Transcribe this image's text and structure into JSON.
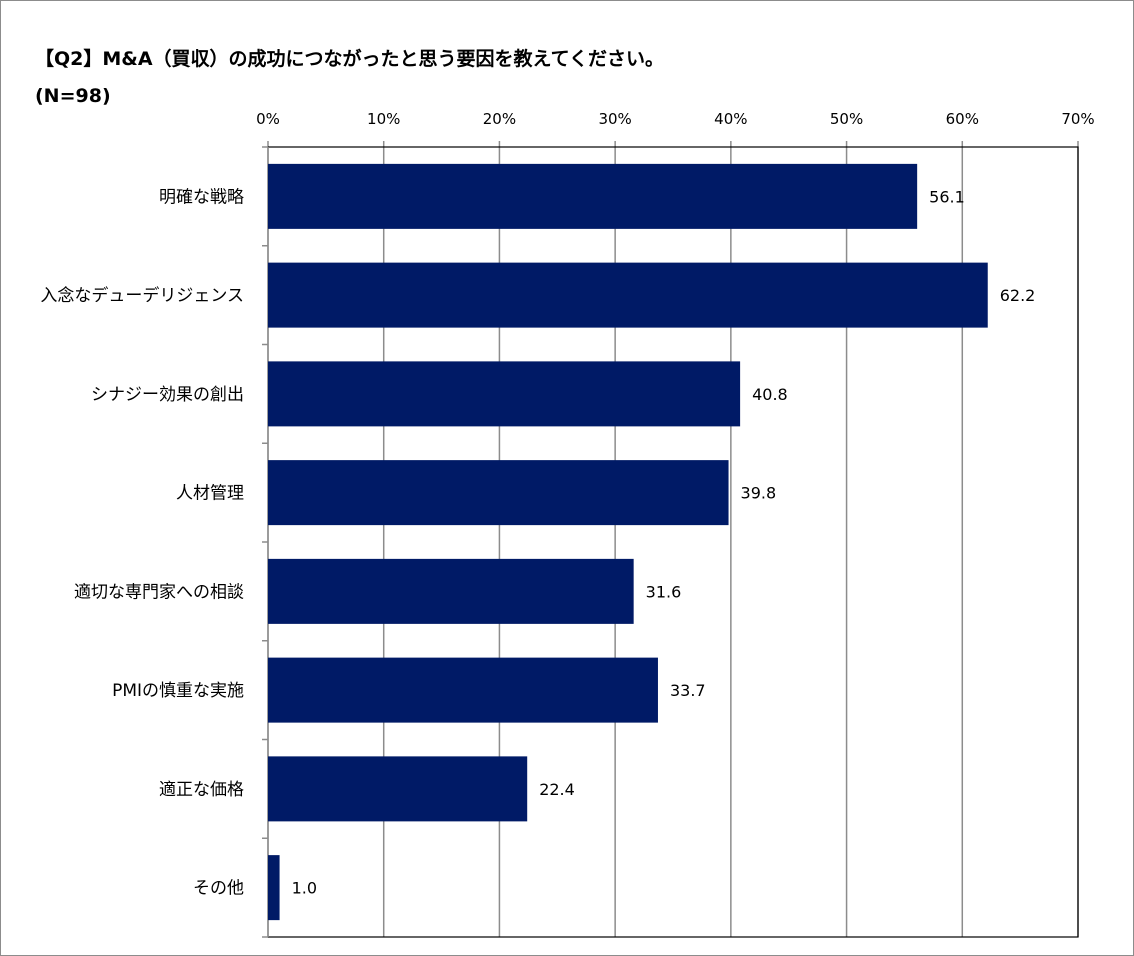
{
  "chart_data": {
    "type": "bar",
    "orientation": "horizontal",
    "title": "【Q2】M&A（買収）の成功につながったと思う要因を教えてください。",
    "subtitle": "(N=98)",
    "categories": [
      "明確な戦略",
      "入念なデューデリジェンス",
      "シナジー効果の創出",
      "人材管理",
      "適切な専門家への相談",
      "PMIの慎重な実施",
      "適正な価格",
      "その他"
    ],
    "values": [
      56.1,
      62.2,
      40.8,
      39.8,
      31.6,
      33.7,
      22.4,
      1.0
    ],
    "value_labels": [
      "56.1",
      "62.2",
      "40.8",
      "39.8",
      "31.6",
      "33.7",
      "22.4",
      "1.0"
    ],
    "xlim": [
      0,
      70
    ],
    "x_ticks": [
      "0%",
      "10%",
      "20%",
      "30%",
      "40%",
      "50%",
      "60%",
      "70%"
    ],
    "x_axis_position": "top",
    "grid": true,
    "legend": "none",
    "bar_color": "#001a66"
  }
}
